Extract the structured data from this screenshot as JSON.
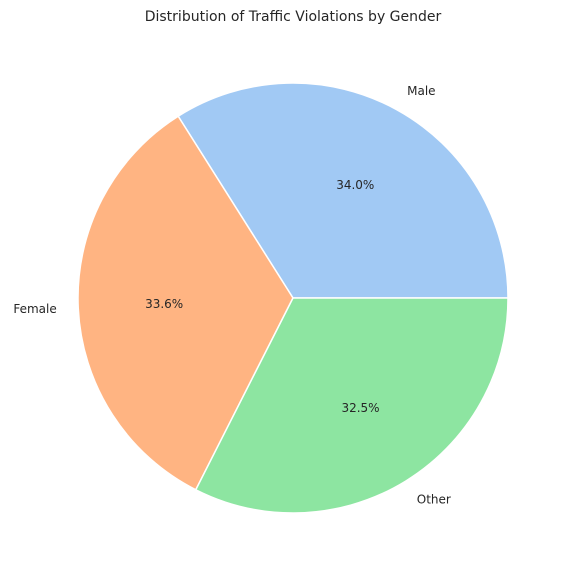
{
  "chart_data": {
    "type": "pie",
    "title": "Distribution of Traffic Violations by Gender",
    "categories": [
      "Male",
      "Female",
      "Other"
    ],
    "values": [
      34.0,
      33.6,
      32.5
    ],
    "percent_labels": [
      "34.0%",
      "33.6%",
      "32.5%"
    ],
    "colors": [
      "#a1c9f4",
      "#ffb482",
      "#8de5a1"
    ],
    "legend": false
  }
}
